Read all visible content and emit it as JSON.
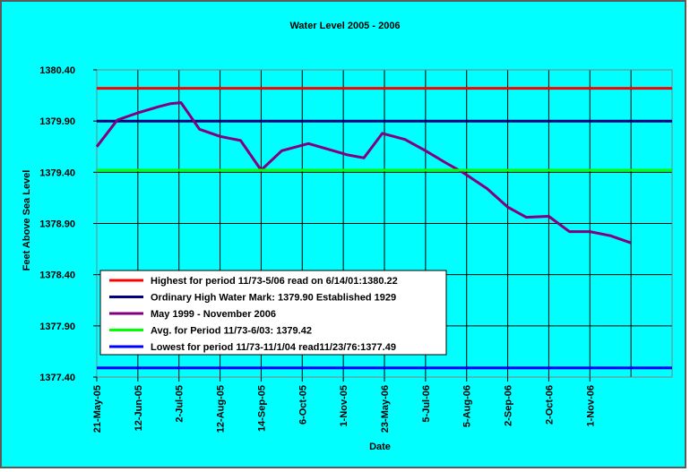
{
  "chart_data": {
    "type": "line",
    "title": "Water Level 2005 - 2006",
    "xlabel": "Date",
    "ylabel": "Feet Above Sea Level",
    "ylim": [
      1377.4,
      1380.4
    ],
    "yticks": [
      "1377.40",
      "1377.90",
      "1378.40",
      "1378.90",
      "1379.40",
      "1379.90",
      "1380.40"
    ],
    "categories": [
      "21-May-05",
      "12-Jun-05",
      "2-Jul-05",
      "12-Aug-05",
      "14-Sep-05",
      "6-Oct-05",
      "1-Nov-05",
      "23-May-06",
      "5-Jul-06",
      "5-Aug-06",
      "2-Sep-06",
      "2-Oct-06",
      "1-Nov-06"
    ],
    "x_span": [
      0,
      14
    ],
    "grid": true,
    "legend_position": "bottom-left",
    "series": [
      {
        "name": "Highest  for period 11/73-5/06 read on 6/14/01:1380.22",
        "color": "#ff0000",
        "points": [
          [
            0,
            1380.22
          ],
          [
            14,
            1380.22
          ]
        ]
      },
      {
        "name": "Ordinary High Water Mark: 1379.90 Established 1929",
        "color": "#000080",
        "points": [
          [
            0,
            1379.9
          ],
          [
            14,
            1379.9
          ]
        ]
      },
      {
        "name": "May 1999 - November 2006",
        "color": "#800080",
        "points": [
          [
            0,
            1379.65
          ],
          [
            0.5,
            1379.91
          ],
          [
            1,
            1379.98
          ],
          [
            1.5,
            1380.04
          ],
          [
            1.8,
            1380.07
          ],
          [
            2.05,
            1380.08
          ],
          [
            2.5,
            1379.82
          ],
          [
            3,
            1379.75
          ],
          [
            3.5,
            1379.71
          ],
          [
            4,
            1379.42
          ],
          [
            4.5,
            1379.61
          ],
          [
            5.15,
            1379.68
          ],
          [
            6.1,
            1379.57
          ],
          [
            6.5,
            1379.54
          ],
          [
            6.95,
            1379.78
          ],
          [
            7.5,
            1379.72
          ],
          [
            8,
            1379.61
          ],
          [
            8.5,
            1379.49
          ],
          [
            8.9,
            1379.4
          ],
          [
            9.5,
            1379.24
          ],
          [
            10,
            1379.06
          ],
          [
            10.45,
            1378.96
          ],
          [
            11,
            1378.97
          ],
          [
            11.5,
            1378.82
          ],
          [
            12,
            1378.82
          ],
          [
            12.5,
            1378.78
          ],
          [
            13,
            1378.71
          ]
        ]
      },
      {
        "name": "Avg. for Period 11/73-6/03: 1379.42",
        "color": "#00ff00",
        "points": [
          [
            0,
            1379.42
          ],
          [
            14,
            1379.42
          ]
        ]
      },
      {
        "name": "Lowest for period 11/73-11/1/04 read11/23/76:1377.49",
        "color": "#0000ff",
        "points": [
          [
            0,
            1377.49
          ],
          [
            14,
            1377.49
          ]
        ]
      }
    ]
  }
}
